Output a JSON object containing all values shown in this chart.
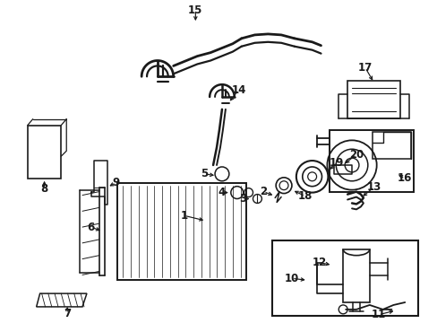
{
  "bg_color": "#ffffff",
  "line_color": "#1a1a1a",
  "fig_width": 4.89,
  "fig_height": 3.6,
  "dpi": 100,
  "label_fontsize": 8.5
}
